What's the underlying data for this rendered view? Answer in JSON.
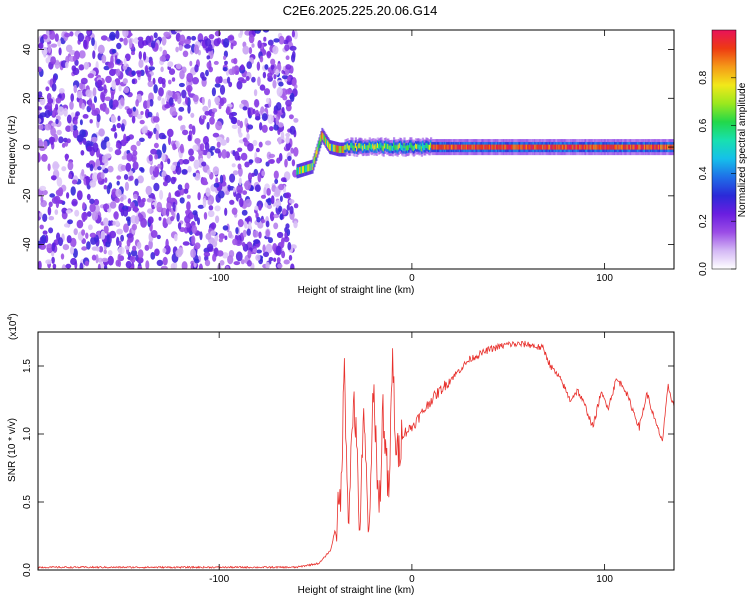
{
  "title": "C2E6.2025.225.20.06.G14",
  "chart_data": [
    {
      "type": "heatmap",
      "xlabel": "Height of straight line (km)",
      "ylabel": "Frequency (Hz)",
      "xlim": [
        -194,
        136
      ],
      "ylim": [
        -50,
        48
      ],
      "x_ticks": [
        -100,
        0,
        100
      ],
      "y_ticks": [
        -40,
        -20,
        0,
        20,
        40
      ],
      "colorbar": {
        "label": "Normalized spectral amplitude",
        "range": [
          0,
          1
        ],
        "ticks": [
          0.0,
          0.2,
          0.4,
          0.6,
          0.8
        ],
        "colors": [
          "#ffffff",
          "#d4b8f5",
          "#9b4de6",
          "#6a1ee0",
          "#2a2ad8",
          "#1f6fe8",
          "#15c0ea",
          "#18e0b0",
          "#22d84a",
          "#9be81e",
          "#f2e81a",
          "#f59a18",
          "#ee3a12",
          "#e8125a"
        ]
      },
      "regions": [
        {
          "name": "noise",
          "x_range": [
            -194,
            -60
          ],
          "freq_range": [
            -50,
            48
          ],
          "amplitude": [
            0.05,
            0.3
          ]
        },
        {
          "name": "onset",
          "x_range": [
            -60,
            -35
          ],
          "freq_points": [
            [
              -60,
              -10
            ],
            [
              -52,
              -8
            ],
            [
              -47,
              5
            ],
            [
              -43,
              0
            ],
            [
              -38,
              -1
            ]
          ],
          "amplitude": [
            0.4,
            0.9
          ]
        },
        {
          "name": "transition",
          "x_range": [
            -35,
            10
          ],
          "freq": 0,
          "amplitude": [
            0.5,
            0.8
          ]
        },
        {
          "name": "steady",
          "x_range": [
            10,
            136
          ],
          "freq": 0,
          "amplitude": [
            0.85,
            1.0
          ]
        }
      ]
    },
    {
      "type": "line",
      "xlabel": "Height of straight line (km)",
      "ylabel": "SNR (10 * v/v)",
      "y_multiplier": "(x10",
      "y_multiplier_exp": "4",
      "y_multiplier_close": ")",
      "xlim": [
        -194,
        136
      ],
      "ylim": [
        0,
        1.75
      ],
      "x_ticks": [
        -100,
        0,
        100
      ],
      "y_ticks": [
        0.0,
        0.5,
        1.0,
        1.5
      ],
      "series": [
        {
          "color": "#e8302c",
          "points": [
            [
              -194,
              0.02
            ],
            [
              -150,
              0.02
            ],
            [
              -100,
              0.02
            ],
            [
              -60,
              0.02
            ],
            [
              -48,
              0.05
            ],
            [
              -42,
              0.15
            ],
            [
              -37,
              0.5
            ],
            [
              -35,
              1.5
            ],
            [
              -33,
              0.4
            ],
            [
              -30,
              1.3
            ],
            [
              -27,
              0.3
            ],
            [
              -25,
              1.1
            ],
            [
              -22,
              0.2
            ],
            [
              -20,
              1.4
            ],
            [
              -17,
              0.4
            ],
            [
              -15,
              1.2
            ],
            [
              -12,
              0.5
            ],
            [
              -10,
              1.55
            ],
            [
              -8,
              0.8
            ],
            [
              -5,
              1.0
            ],
            [
              0,
              1.05
            ],
            [
              10,
              1.25
            ],
            [
              20,
              1.4
            ],
            [
              30,
              1.55
            ],
            [
              40,
              1.62
            ],
            [
              50,
              1.66
            ],
            [
              60,
              1.66
            ],
            [
              68,
              1.63
            ],
            [
              72,
              1.5
            ],
            [
              78,
              1.38
            ],
            [
              82,
              1.25
            ],
            [
              86,
              1.32
            ],
            [
              90,
              1.2
            ],
            [
              94,
              1.05
            ],
            [
              98,
              1.3
            ],
            [
              102,
              1.2
            ],
            [
              106,
              1.4
            ],
            [
              110,
              1.35
            ],
            [
              114,
              1.2
            ],
            [
              118,
              1.05
            ],
            [
              122,
              1.3
            ],
            [
              126,
              1.1
            ],
            [
              130,
              0.95
            ],
            [
              133,
              1.35
            ],
            [
              136,
              1.2
            ]
          ]
        }
      ]
    }
  ]
}
